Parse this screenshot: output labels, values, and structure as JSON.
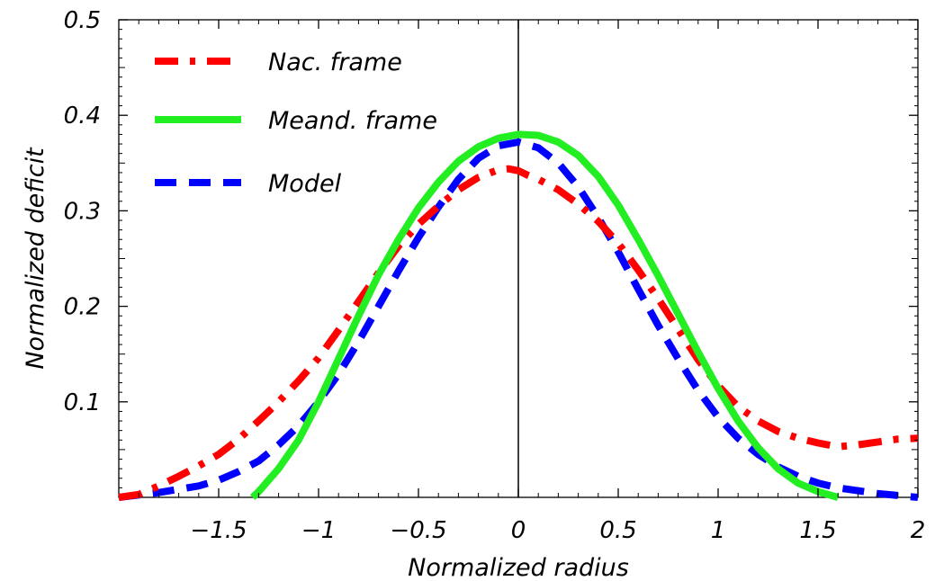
{
  "chart_data": {
    "type": "line",
    "xlabel": "Normalized radius",
    "ylabel": "Normalized deficit",
    "xlim": [
      -2.0,
      2.0
    ],
    "ylim": [
      0.0,
      0.5
    ],
    "x_tick_labels": [
      {
        "value": -1.5,
        "label": "−1.5"
      },
      {
        "value": -1.0,
        "label": "−1"
      },
      {
        "value": -0.5,
        "label": "−0.5"
      },
      {
        "value": 0.0,
        "label": "0"
      },
      {
        "value": 0.5,
        "label": "0.5"
      },
      {
        "value": 1.0,
        "label": "1"
      },
      {
        "value": 1.5,
        "label": "1.5"
      },
      {
        "value": 2.0,
        "label": "2"
      }
    ],
    "y_tick_labels": [
      {
        "value": 0.1,
        "label": "0.1"
      },
      {
        "value": 0.2,
        "label": "0.2"
      },
      {
        "value": 0.3,
        "label": "0.3"
      },
      {
        "value": 0.4,
        "label": "0.4"
      },
      {
        "value": 0.5,
        "label": "0.5"
      }
    ],
    "grid": false,
    "legend_position": "top-left",
    "series": [
      {
        "name": "Nac. frame",
        "color": "#ff0000",
        "style": "dash-dot",
        "x": [
          -2.0,
          -1.9,
          -1.8,
          -1.7,
          -1.6,
          -1.5,
          -1.4,
          -1.3,
          -1.2,
          -1.1,
          -1.0,
          -0.9,
          -0.8,
          -0.7,
          -0.6,
          -0.5,
          -0.4,
          -0.3,
          -0.2,
          -0.1,
          -0.05,
          0.0,
          0.05,
          0.1,
          0.2,
          0.3,
          0.4,
          0.5,
          0.6,
          0.7,
          0.8,
          0.9,
          1.0,
          1.1,
          1.2,
          1.3,
          1.4,
          1.5,
          1.6,
          1.7,
          1.8,
          1.9,
          2.0
        ],
        "y": [
          0.0,
          0.003,
          0.012,
          0.022,
          0.033,
          0.045,
          0.061,
          0.08,
          0.1,
          0.122,
          0.146,
          0.175,
          0.205,
          0.235,
          0.263,
          0.286,
          0.305,
          0.322,
          0.335,
          0.343,
          0.344,
          0.342,
          0.337,
          0.333,
          0.322,
          0.307,
          0.289,
          0.266,
          0.238,
          0.208,
          0.176,
          0.144,
          0.117,
          0.095,
          0.08,
          0.069,
          0.062,
          0.057,
          0.053,
          0.055,
          0.058,
          0.061,
          0.062
        ]
      },
      {
        "name": "Meand. frame",
        "color": "#22ee22",
        "style": "solid",
        "x": [
          -1.33,
          -1.3,
          -1.2,
          -1.1,
          -1.0,
          -0.9,
          -0.8,
          -0.7,
          -0.6,
          -0.5,
          -0.4,
          -0.3,
          -0.2,
          -0.1,
          0.0,
          0.1,
          0.2,
          0.3,
          0.4,
          0.5,
          0.6,
          0.7,
          0.8,
          0.9,
          1.0,
          1.1,
          1.2,
          1.3,
          1.4,
          1.5,
          1.6
        ],
        "y": [
          0.0,
          0.006,
          0.03,
          0.06,
          0.1,
          0.145,
          0.19,
          0.233,
          0.27,
          0.303,
          0.33,
          0.352,
          0.367,
          0.376,
          0.38,
          0.379,
          0.372,
          0.358,
          0.336,
          0.306,
          0.27,
          0.232,
          0.192,
          0.152,
          0.114,
          0.08,
          0.052,
          0.03,
          0.015,
          0.006,
          0.0
        ]
      },
      {
        "name": "Model",
        "color": "#0000ff",
        "style": "dashed",
        "x": [
          -2.0,
          -1.8,
          -1.6,
          -1.5,
          -1.4,
          -1.3,
          -1.2,
          -1.1,
          -1.0,
          -0.9,
          -0.8,
          -0.7,
          -0.6,
          -0.5,
          -0.4,
          -0.3,
          -0.2,
          -0.1,
          0.0,
          0.1,
          0.2,
          0.3,
          0.4,
          0.5,
          0.6,
          0.7,
          0.8,
          0.9,
          1.0,
          1.1,
          1.2,
          1.3,
          1.4,
          1.5,
          1.6,
          1.7,
          1.8,
          1.9,
          2.0
        ],
        "y": [
          0.0,
          0.005,
          0.012,
          0.018,
          0.027,
          0.038,
          0.055,
          0.075,
          0.1,
          0.129,
          0.163,
          0.2,
          0.237,
          0.272,
          0.304,
          0.333,
          0.355,
          0.368,
          0.372,
          0.366,
          0.35,
          0.325,
          0.293,
          0.257,
          0.218,
          0.18,
          0.145,
          0.112,
          0.084,
          0.062,
          0.045,
          0.032,
          0.022,
          0.015,
          0.01,
          0.007,
          0.004,
          0.002,
          0.0
        ]
      }
    ]
  }
}
